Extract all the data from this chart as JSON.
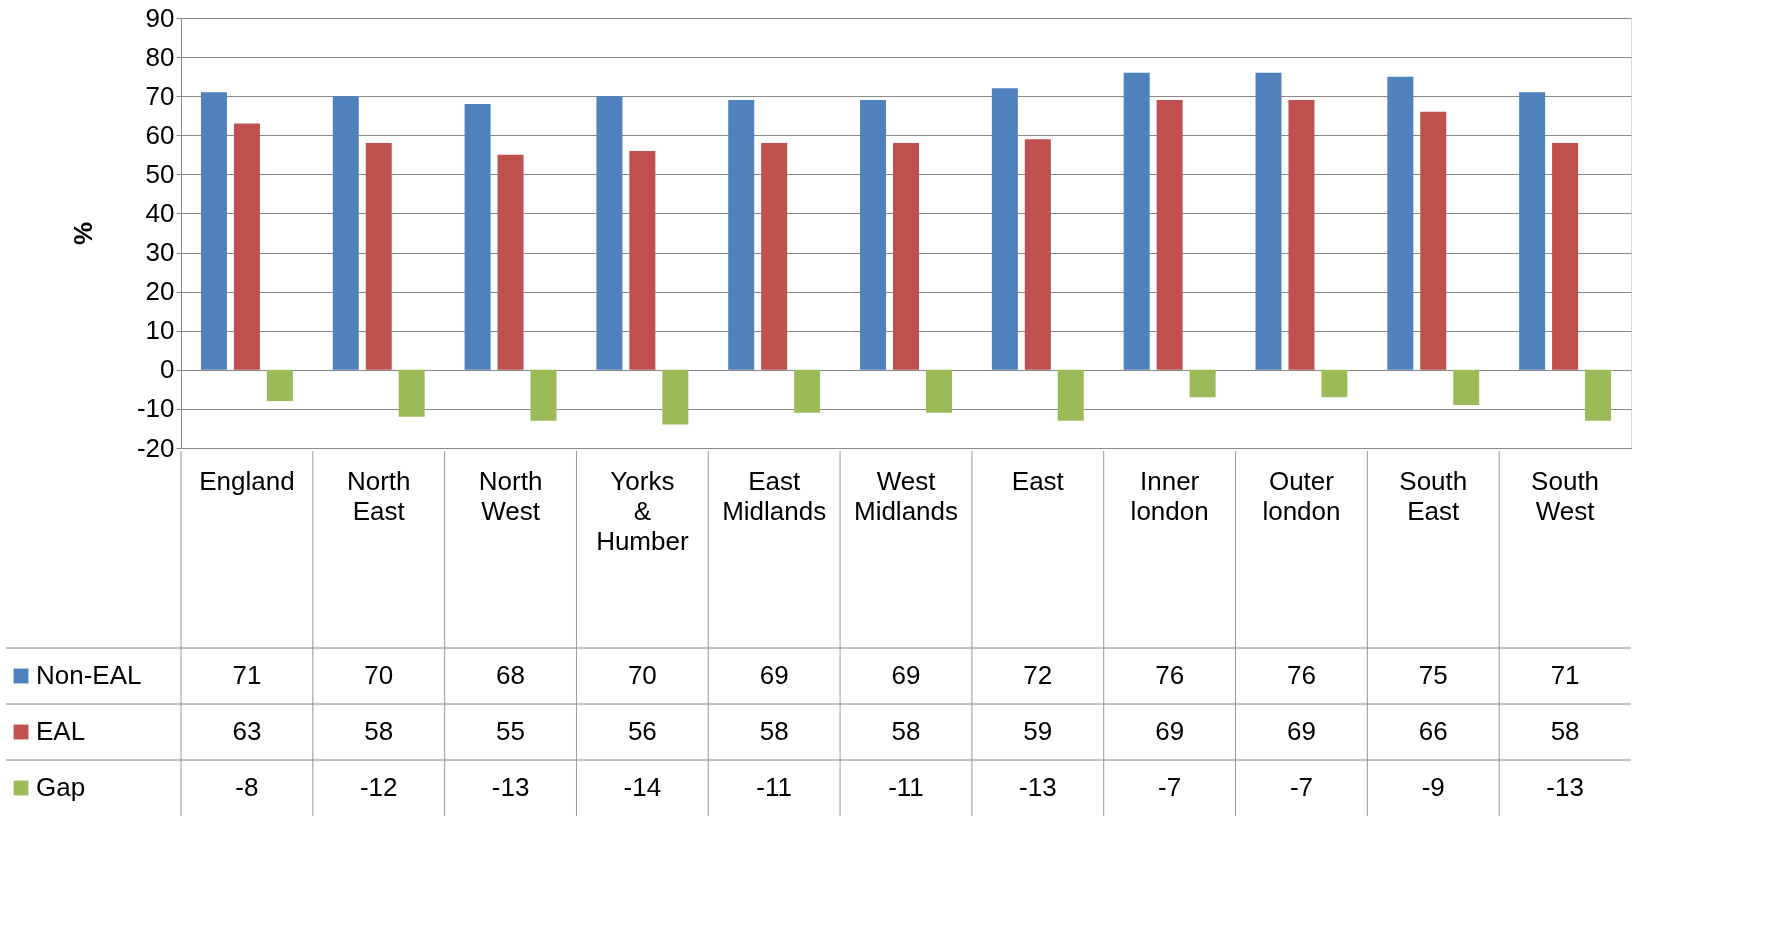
{
  "chart_data": {
    "type": "bar",
    "ylabel": "%",
    "categories": [
      "England",
      "North East",
      "North West",
      "Yorks & Humber",
      "East Midlands",
      "West Midlands",
      "East",
      "Inner london",
      "Outer london",
      "South East",
      "South West"
    ],
    "series": [
      {
        "name": "Non-EAL",
        "color": "#4f81bd",
        "values": [
          71,
          70,
          68,
          70,
          69,
          69,
          72,
          76,
          76,
          75,
          71
        ]
      },
      {
        "name": "EAL",
        "color": "#c0504d",
        "values": [
          63,
          58,
          55,
          56,
          58,
          58,
          59,
          69,
          69,
          66,
          58
        ]
      },
      {
        "name": "Gap",
        "color": "#9bbb59",
        "values": [
          -8,
          -12,
          -13,
          -14,
          -11,
          -11,
          -13,
          -7,
          -7,
          -9,
          -13
        ]
      }
    ],
    "ylim": [
      -20,
      90
    ],
    "yticks": [
      -20,
      -10,
      0,
      10,
      20,
      30,
      40,
      50,
      60,
      70,
      80,
      90
    ],
    "grid": "y",
    "legend": "bottom left",
    "data_labels": true
  }
}
